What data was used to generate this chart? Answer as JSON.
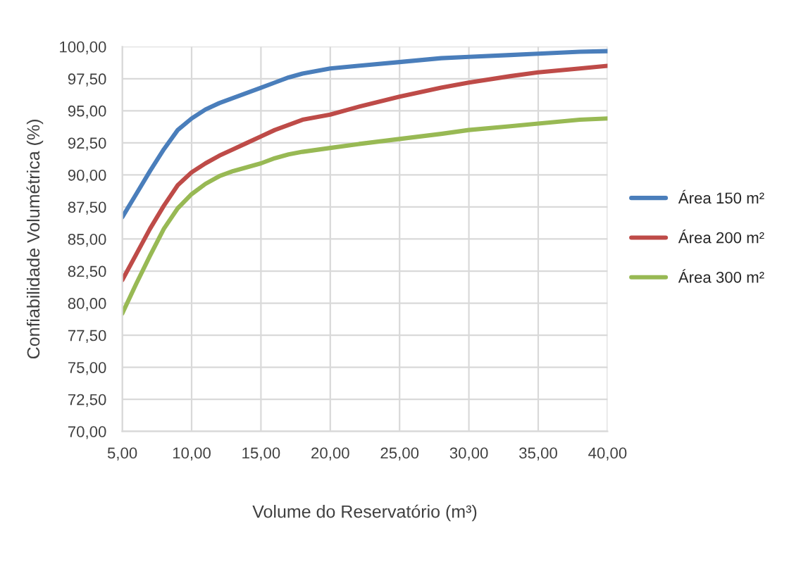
{
  "chart_data": {
    "type": "line",
    "xlabel": "Volume do Reservatório (m³)",
    "ylabel": "Confiabilidade Volumétrica (%)",
    "xlim": [
      5,
      40
    ],
    "ylim": [
      70,
      100
    ],
    "xticks": [
      {
        "value": 5,
        "label": "5,00"
      },
      {
        "value": 10,
        "label": "10,00"
      },
      {
        "value": 15,
        "label": "15,00"
      },
      {
        "value": 20,
        "label": "20,00"
      },
      {
        "value": 25,
        "label": "25,00"
      },
      {
        "value": 30,
        "label": "30,00"
      },
      {
        "value": 35,
        "label": "35,00"
      },
      {
        "value": 40,
        "label": "40,00"
      }
    ],
    "yticks": [
      {
        "value": 70,
        "label": "70,00"
      },
      {
        "value": 72.5,
        "label": "72,50"
      },
      {
        "value": 75,
        "label": "75,00"
      },
      {
        "value": 77.5,
        "label": "77,50"
      },
      {
        "value": 80,
        "label": "80,00"
      },
      {
        "value": 82.5,
        "label": "82,50"
      },
      {
        "value": 85,
        "label": "85,00"
      },
      {
        "value": 87.5,
        "label": "87,50"
      },
      {
        "value": 90,
        "label": "90,00"
      },
      {
        "value": 92.5,
        "label": "92,50"
      },
      {
        "value": 95,
        "label": "95,00"
      },
      {
        "value": 97.5,
        "label": "97,50"
      },
      {
        "value": 100,
        "label": "100,00"
      }
    ],
    "grid": true,
    "legend": "right",
    "marker": "none",
    "line_style": "solid",
    "x": [
      5,
      6,
      7,
      8,
      9,
      10,
      11,
      12,
      13,
      14,
      15,
      16,
      17,
      18,
      20,
      22,
      25,
      28,
      30,
      33,
      35,
      38,
      40
    ],
    "series": [
      {
        "name": "Área 150 m²",
        "color": "#4a7ebb",
        "values": [
          86.7,
          88.5,
          90.3,
          92,
          93.5,
          94.4,
          95.1,
          95.6,
          96,
          96.4,
          96.8,
          97.2,
          97.6,
          97.9,
          98.3,
          98.5,
          98.8,
          99.1,
          99.2,
          99.35,
          99.45,
          99.6,
          99.65
        ]
      },
      {
        "name": "Área 200 m²",
        "color": "#be4b48",
        "values": [
          81.8,
          83.8,
          85.8,
          87.6,
          89.2,
          90.2,
          90.9,
          91.5,
          92,
          92.5,
          93,
          93.5,
          93.9,
          94.3,
          94.7,
          95.3,
          96.1,
          96.8,
          97.2,
          97.7,
          98,
          98.3,
          98.5
        ]
      },
      {
        "name": "Área 300 m²",
        "color": "#98b954",
        "values": [
          79.2,
          81.5,
          83.7,
          85.8,
          87.4,
          88.5,
          89.3,
          89.9,
          90.3,
          90.6,
          90.9,
          91.3,
          91.6,
          91.8,
          92.1,
          92.4,
          92.8,
          93.2,
          93.5,
          93.8,
          94,
          94.3,
          94.4
        ]
      }
    ]
  }
}
